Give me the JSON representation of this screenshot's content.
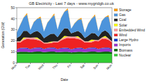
{
  "chart_data": {
    "type": "area",
    "stacked": true,
    "grid": true,
    "legend": "right",
    "title": "GB Electricity - Last 7 days - www.mygridgb.co.uk",
    "x_label": "Date",
    "y_label": "Generation (GW)",
    "categories": [
      "Mon",
      null,
      null,
      null,
      "Tue",
      null,
      null,
      null,
      "Wed",
      null,
      null,
      null,
      "Thu",
      null,
      null,
      null,
      "Fri",
      null,
      null,
      null,
      "Sat",
      null,
      null,
      null,
      "Sun",
      null,
      null,
      null,
      "Mon"
    ],
    "ylim": [
      0,
      50
    ],
    "yticks": [
      0,
      10,
      20,
      30,
      40,
      50
    ],
    "series": [
      {
        "name": "Nuclear",
        "color": "#33cc33",
        "values": [
          8.1,
          8.1,
          8.0,
          8.0,
          8.0,
          8.1,
          8.1,
          8.1,
          8.2,
          8.2,
          8.1,
          8.1,
          8.0,
          8.0,
          8.0,
          8.0,
          7.9,
          7.9,
          8.0,
          8.0,
          8.1,
          8.1,
          8.1,
          8.1,
          8.2,
          8.2,
          8.2,
          8.2,
          8.2
        ]
      },
      {
        "name": "Biomass",
        "color": "#006600",
        "values": [
          1.5,
          1.8,
          2.0,
          2.0,
          1.5,
          1.8,
          2.0,
          2.0,
          1.5,
          1.8,
          2.0,
          2.0,
          1.5,
          1.8,
          2.0,
          2.0,
          1.5,
          1.8,
          2.0,
          2.0,
          1.5,
          1.8,
          2.0,
          2.0,
          1.5,
          1.8,
          2.0,
          2.0,
          1.5
        ]
      },
      {
        "name": "Imports",
        "color": "#9933cc",
        "values": [
          2.5,
          3.0,
          3.0,
          2.8,
          2.5,
          3.0,
          3.0,
          2.8,
          2.5,
          3.0,
          3.0,
          2.8,
          2.5,
          3.0,
          3.0,
          2.8,
          2.5,
          3.0,
          3.0,
          2.8,
          2.5,
          3.0,
          3.0,
          2.8,
          2.5,
          3.0,
          3.0,
          2.8,
          2.5
        ]
      },
      {
        "name": "Large Hydro",
        "color": "#0033cc",
        "values": [
          0.3,
          0.5,
          0.6,
          0.8,
          0.3,
          0.5,
          0.6,
          0.8,
          0.3,
          0.5,
          0.6,
          0.8,
          0.3,
          0.5,
          0.6,
          0.8,
          0.3,
          0.5,
          0.6,
          0.8,
          0.3,
          0.5,
          0.6,
          0.8,
          0.3,
          0.5,
          0.6,
          0.8,
          0.3
        ]
      },
      {
        "name": "Wind",
        "color": "#ee2222",
        "values": [
          6,
          5,
          7,
          8,
          9,
          8,
          7,
          6,
          5,
          4,
          4,
          5,
          6,
          7,
          8,
          9,
          10,
          9,
          8,
          7,
          6,
          5,
          5,
          6,
          7,
          8,
          8,
          7,
          6
        ]
      },
      {
        "name": "Embedded Wind",
        "color": "#ff9999",
        "values": [
          1.0,
          0.9,
          1.2,
          1.3,
          1.5,
          1.4,
          1.2,
          1.0,
          0.8,
          0.7,
          0.7,
          0.8,
          1.0,
          1.1,
          1.3,
          1.5,
          1.6,
          1.5,
          1.3,
          1.1,
          1.0,
          0.9,
          0.8,
          1.0,
          1.1,
          1.3,
          1.3,
          1.2,
          1.0
        ]
      },
      {
        "name": "Solar",
        "color": "#ffff00",
        "values": [
          0,
          0.1,
          1.2,
          0,
          0,
          0.1,
          1.0,
          0,
          0,
          0.1,
          0.8,
          0,
          0,
          0.1,
          1.4,
          0,
          0,
          0.1,
          1.1,
          0,
          0,
          0.2,
          1.5,
          0,
          0,
          0.1,
          1.3,
          0,
          0
        ]
      },
      {
        "name": "Coal",
        "color": "#222222",
        "values": [
          3,
          5,
          6,
          6,
          3,
          5,
          6,
          6,
          4,
          6,
          7,
          7,
          4,
          6,
          7,
          7,
          3,
          4,
          5,
          5,
          3,
          5,
          6,
          6,
          3,
          5,
          5,
          5,
          3
        ]
      },
      {
        "name": "Gas",
        "color": "#4d94db",
        "values": [
          5,
          10,
          12,
          15,
          4,
          9,
          11,
          14,
          6,
          12,
          14,
          17,
          7,
          13,
          15,
          17,
          4,
          8,
          10,
          13,
          5,
          11,
          13,
          16,
          5,
          10,
          12,
          15,
          5
        ]
      },
      {
        "name": "Storage",
        "color": "#ff9900",
        "values": [
          0,
          0.3,
          0.2,
          1.2,
          0,
          0.3,
          0.2,
          1.2,
          0,
          0.3,
          0.2,
          1.2,
          0,
          0.3,
          0.2,
          1.2,
          0,
          0.3,
          0.2,
          1.2,
          0,
          0.3,
          0.2,
          1.2,
          0,
          0.3,
          0.2,
          1.2,
          0
        ]
      }
    ]
  }
}
